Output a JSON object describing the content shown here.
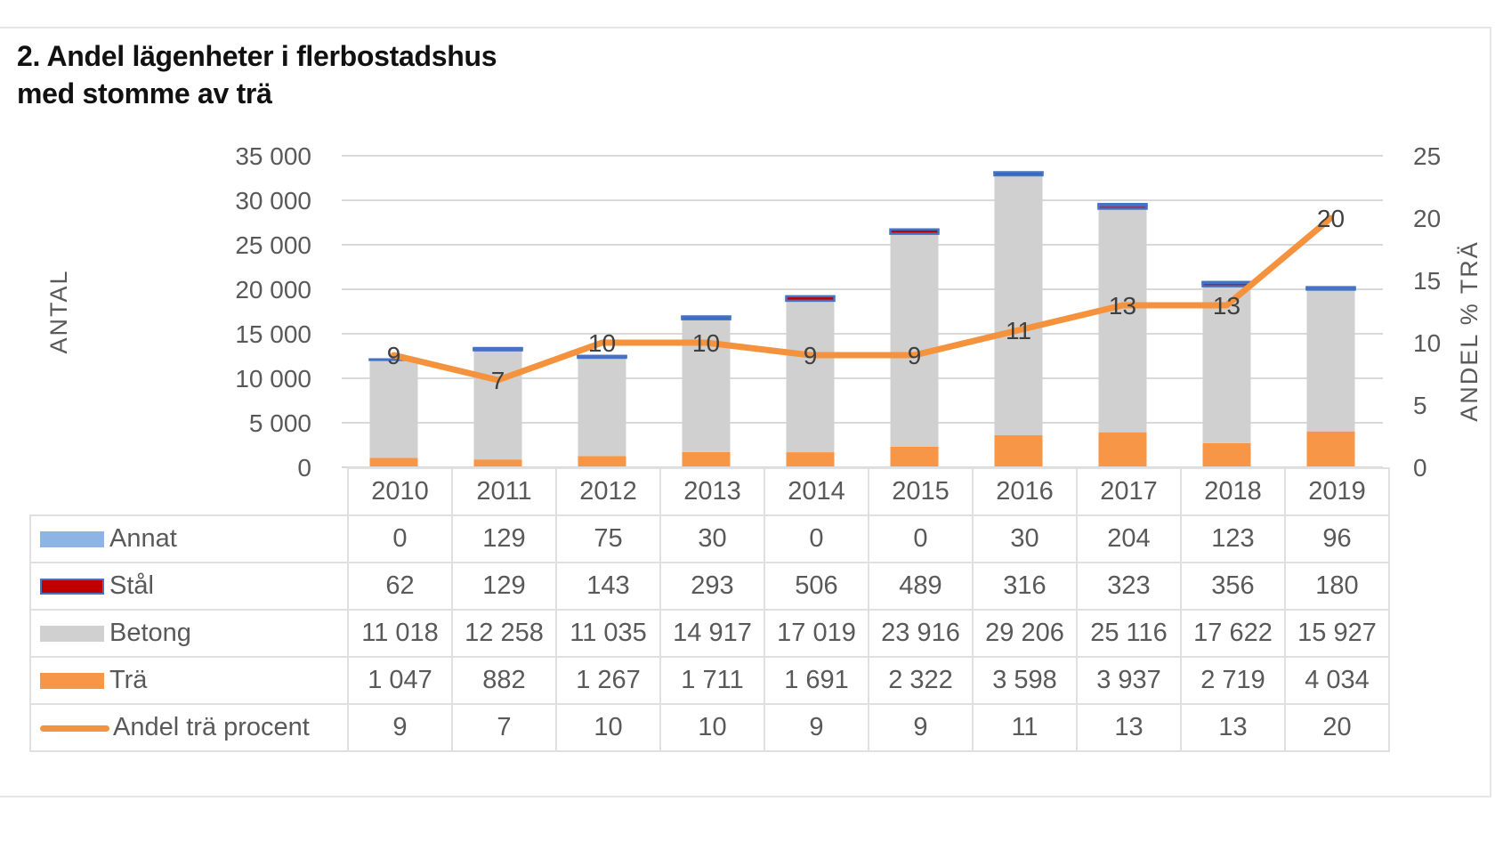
{
  "title_line1": "2. Andel lägenheter i flerbostadshus",
  "title_line2": "med stomme av trä",
  "chart_data": {
    "type": "bar",
    "stacked": true,
    "title": "2. Andel lägenheter i flerbostadshus med stomme av trä",
    "ylabel": "ANTAL",
    "y2label": "ANDEL % TRÄ",
    "ylim": [
      0,
      35000
    ],
    "y2lim": [
      0,
      25
    ],
    "yticks": [
      "0",
      "5 000",
      "10 000",
      "15 000",
      "20 000",
      "25 000",
      "30 000",
      "35 000"
    ],
    "y2ticks": [
      "0",
      "5",
      "10",
      "15",
      "20",
      "25"
    ],
    "grid": true,
    "legend": "data-table",
    "categories": [
      "2010",
      "2011",
      "2012",
      "2013",
      "2014",
      "2015",
      "2016",
      "2017",
      "2018",
      "2019"
    ],
    "series": [
      {
        "name": "Annat",
        "kind": "bar",
        "color": "#8db4e2",
        "edge": "#4472c4",
        "values": [
          0,
          129,
          75,
          30,
          0,
          0,
          30,
          204,
          123,
          96
        ],
        "labels": [
          "0",
          "129",
          "75",
          "30",
          "0",
          "0",
          "30",
          "204",
          "123",
          "96"
        ]
      },
      {
        "name": "Stål",
        "kind": "bar",
        "color": "#c00000",
        "edge": "#4472c4",
        "values": [
          62,
          129,
          143,
          293,
          506,
          489,
          316,
          323,
          356,
          180
        ],
        "labels": [
          "62",
          "129",
          "143",
          "293",
          "506",
          "489",
          "316",
          "323",
          "356",
          "180"
        ]
      },
      {
        "name": "Betong",
        "kind": "bar",
        "color": "#d0d0d0",
        "values": [
          11018,
          12258,
          11035,
          14917,
          17019,
          23916,
          29206,
          25116,
          17622,
          15927
        ],
        "labels": [
          "11 018",
          "12 258",
          "11 035",
          "14 917",
          "17 019",
          "23 916",
          "29 206",
          "25 116",
          "17 622",
          "15 927"
        ]
      },
      {
        "name": "Trä",
        "kind": "bar",
        "color": "#f79646",
        "values": [
          1047,
          882,
          1267,
          1711,
          1691,
          2322,
          3598,
          3937,
          2719,
          4034
        ],
        "labels": [
          "1 047",
          "882",
          "1 267",
          "1 711",
          "1 691",
          "2 322",
          "3 598",
          "3 937",
          "2 719",
          "4 034"
        ]
      },
      {
        "name": "Andel trä procent",
        "kind": "line",
        "axis": "right",
        "color": "#f5923e",
        "values": [
          9,
          7,
          10,
          10,
          9,
          9,
          11,
          13,
          13,
          20
        ],
        "labels": [
          "9",
          "7",
          "10",
          "10",
          "9",
          "9",
          "11",
          "13",
          "13",
          "20"
        ]
      }
    ]
  }
}
